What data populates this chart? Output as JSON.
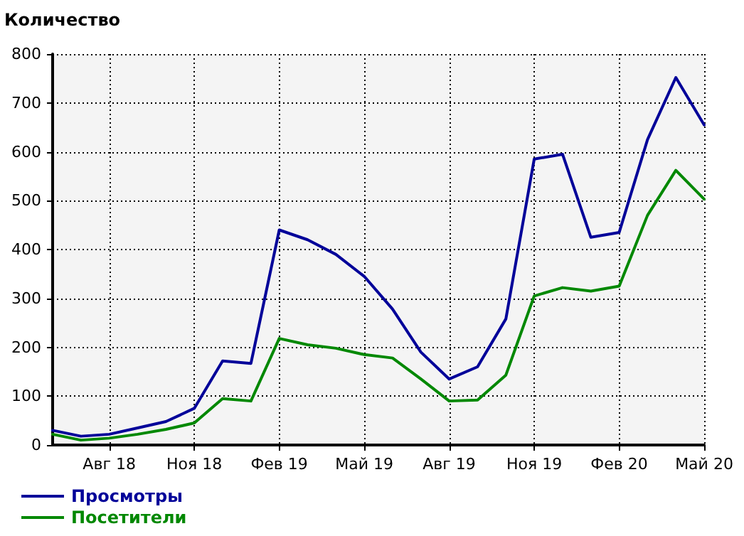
{
  "chart_data": {
    "type": "line",
    "ylabel": "Количество",
    "categories": [
      null,
      null,
      "Авг 18",
      null,
      null,
      "Ноя 18",
      null,
      null,
      "Фев 19",
      null,
      null,
      "Май 19",
      null,
      null,
      "Авг 19",
      null,
      null,
      "Ноя 19",
      null,
      null,
      "Фев 20",
      null,
      null,
      "Май 20"
    ],
    "series": [
      {
        "name": "Просмотры",
        "color": "#000099",
        "values": [
          30,
          18,
          22,
          35,
          48,
          75,
          172,
          167,
          440,
          420,
          390,
          345,
          278,
          190,
          135,
          160,
          258,
          585,
          595,
          425,
          435,
          625,
          752,
          655
        ]
      },
      {
        "name": "Посетители",
        "color": "#008800",
        "values": [
          22,
          10,
          14,
          22,
          32,
          45,
          95,
          90,
          218,
          205,
          198,
          185,
          178,
          135,
          90,
          92,
          143,
          305,
          322,
          315,
          325,
          470,
          562,
          503
        ]
      }
    ],
    "ylim": [
      0,
      800
    ],
    "yticks": [
      0,
      100,
      200,
      300,
      400,
      500,
      600,
      700,
      800
    ],
    "grid": true,
    "legend": "bottom left",
    "marker": "none",
    "line_style": "solid"
  }
}
